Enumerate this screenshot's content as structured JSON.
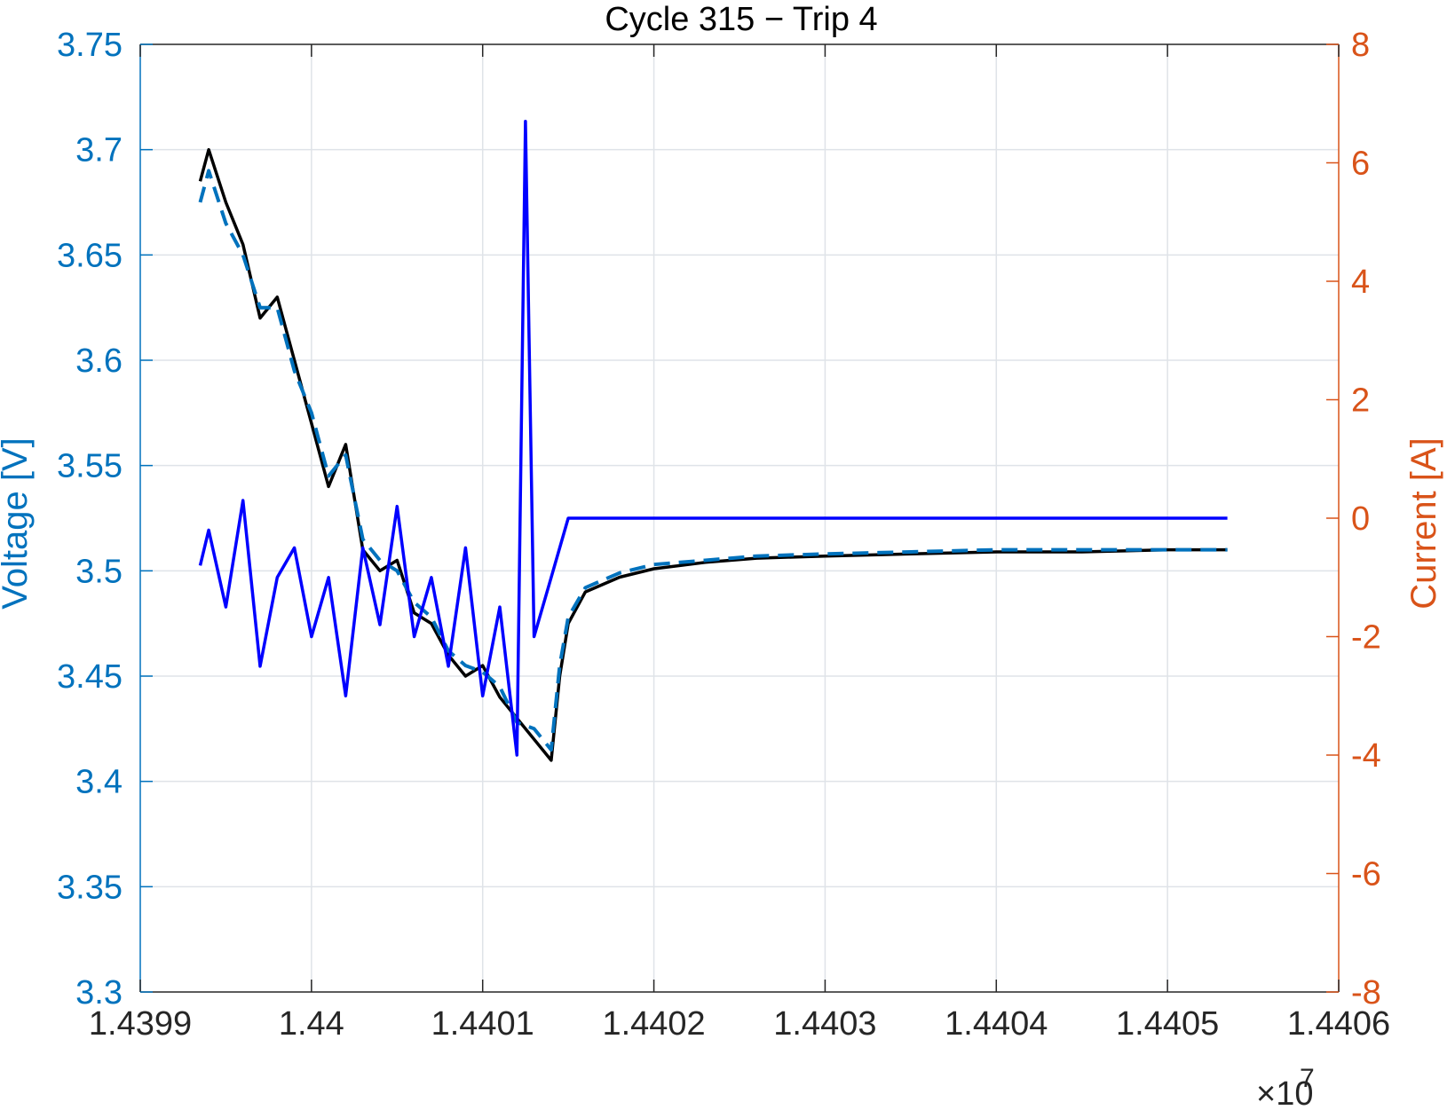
{
  "chart_data": {
    "type": "line",
    "title": "Cycle 315 − Trip 4",
    "xlabel": "",
    "x_exponent_label": "×10",
    "x_exponent_power": "7",
    "xlim": [
      14399000,
      14406000
    ],
    "x_tick_labels": [
      "1.4399",
      "1.44",
      "1.4401",
      "1.4402",
      "1.4403",
      "1.4404",
      "1.4405",
      "1.4406"
    ],
    "y_left": {
      "label": "Voltage [V]",
      "ylim": [
        3.3,
        3.75
      ],
      "tick_labels": [
        "3.3",
        "3.35",
        "3.4",
        "3.45",
        "3.5",
        "3.55",
        "3.6",
        "3.65",
        "3.7",
        "3.75"
      ],
      "color": "#0072BD"
    },
    "y_right": {
      "label": "Current [A]",
      "ylim": [
        -8,
        8
      ],
      "tick_labels": [
        "-8",
        "-6",
        "-4",
        "-2",
        "0",
        "2",
        "4",
        "6",
        "8"
      ],
      "color": "#D95319"
    },
    "grid": true,
    "legend": "none",
    "series": [
      {
        "axis": "left",
        "style": "solid",
        "color": "#000000",
        "x": [
          14399350,
          14399400,
          14399500,
          14399600,
          14399700,
          14399800,
          14399900,
          14400000,
          14400100,
          14400200,
          14400300,
          14400400,
          14400500,
          14400600,
          14400700,
          14400800,
          14400900,
          14401000,
          14401100,
          14401200,
          14401300,
          14401400,
          14401450,
          14401500,
          14401600,
          14401800,
          14402000,
          14402300,
          14402600,
          14403000,
          14403500,
          14404000,
          14404500,
          14405000,
          14405350
        ],
        "y": [
          3.685,
          3.7,
          3.675,
          3.655,
          3.62,
          3.63,
          3.6,
          3.57,
          3.54,
          3.56,
          3.51,
          3.5,
          3.505,
          3.48,
          3.475,
          3.46,
          3.45,
          3.455,
          3.44,
          3.43,
          3.42,
          3.41,
          3.45,
          3.475,
          3.49,
          3.497,
          3.501,
          3.504,
          3.506,
          3.507,
          3.508,
          3.509,
          3.509,
          3.51,
          3.51
        ]
      },
      {
        "axis": "left",
        "style": "dashed",
        "color": "#0072BD",
        "x": [
          14399350,
          14399400,
          14399500,
          14399600,
          14399700,
          14399800,
          14399900,
          14400000,
          14400100,
          14400200,
          14400300,
          14400400,
          14400500,
          14400600,
          14400700,
          14400800,
          14400900,
          14401000,
          14401100,
          14401200,
          14401300,
          14401400,
          14401450,
          14401500,
          14401600,
          14401800,
          14402000,
          14402300,
          14402600,
          14403000,
          14403500,
          14404000,
          14404500,
          14405000,
          14405350
        ],
        "y": [
          3.675,
          3.69,
          3.665,
          3.65,
          3.625,
          3.625,
          3.595,
          3.575,
          3.545,
          3.555,
          3.515,
          3.505,
          3.5,
          3.485,
          3.478,
          3.462,
          3.455,
          3.452,
          3.445,
          3.428,
          3.425,
          3.415,
          3.455,
          3.478,
          3.492,
          3.499,
          3.503,
          3.505,
          3.507,
          3.508,
          3.509,
          3.51,
          3.51,
          3.51,
          3.51
        ]
      },
      {
        "axis": "right",
        "style": "solid",
        "color": "#0000FF",
        "x": [
          14399350,
          14399400,
          14399500,
          14399600,
          14399700,
          14399800,
          14399900,
          14400000,
          14400100,
          14400200,
          14400300,
          14400400,
          14400500,
          14400600,
          14400700,
          14400800,
          14400900,
          14401000,
          14401100,
          14401200,
          14401250,
          14401300,
          14401400,
          14401500,
          14402000,
          14403000,
          14404000,
          14405000,
          14405350
        ],
        "y": [
          -0.8,
          -0.2,
          -1.5,
          0.3,
          -2.5,
          -1.0,
          -0.5,
          -2.0,
          -1.0,
          -3.0,
          -0.5,
          -1.8,
          0.2,
          -2.0,
          -1.0,
          -2.5,
          -0.5,
          -3.0,
          -1.5,
          -4.0,
          6.7,
          -2.0,
          -1.0,
          0.0,
          0.0,
          0.0,
          0.0,
          0.0,
          0.0
        ]
      }
    ]
  }
}
